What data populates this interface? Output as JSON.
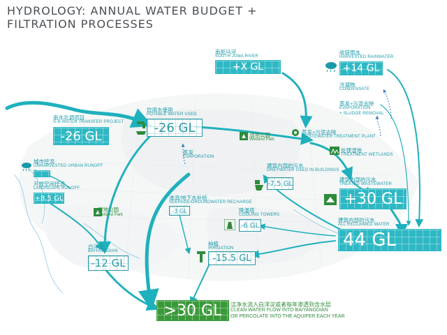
{
  "title_line1": "HYDROLOGY: ANNUAL WATER BUDGET +",
  "title_line2": "FILTRATION PROCESSES",
  "south_juma": {
    "cn": "南拒马河",
    "en": "SOUTH JUMA RIVER",
    "value": "+X GL"
  },
  "rainwater": {
    "cn": "收获雨水",
    "en": "HARVESTED RAINWATER",
    "value": "+14 GL"
  },
  "condensate": {
    "cn": "冷凝物",
    "en": "CONDENSATE"
  },
  "evap_sludge": {
    "cn": "蒸发+污泥去除",
    "en1": "EVAPORATION",
    "en2": "+ SLUDGE REMOVAL"
  },
  "transfer": {
    "cn": "南水北调项目",
    "en": "S-N WATER TRANSFER PROJECT",
    "value": "-26 GL"
  },
  "potable": {
    "cn": "饮用水使用",
    "en": "POTABLE WATER USED",
    "value": "-26 GL"
  },
  "wetland_park_1": {
    "cn": "湿地公园",
    "en": "Wetland Park"
  },
  "wastewater_plant": {
    "cn": "蒸发+污泥去除",
    "en": "WASTEWATER TREATMENT PLANT"
  },
  "treatment_wetlands": {
    "cn": "处理湿地",
    "en": "TREATMENT WETLANDS"
  },
  "evaporation": {
    "cn": "蒸发",
    "en": "EVAPORATION"
  },
  "urban_runoff": {
    "cn": "城市径流",
    "en": "UNHARVESTED URBAN RUNOFF"
  },
  "landscape_runoff": {
    "cn": "开放空间径流",
    "en": "LANDSCAPE RUNOFF",
    "value": "+8.5 GL"
  },
  "greywater": {
    "cn": "建筑内部的污水",
    "en": "GREYWATER USED IN BUILDINGS",
    "value": "-7.5 GL"
  },
  "treated_wastewater": {
    "cn": "建筑内部的污水",
    "en": "TREATED WASTEWATER",
    "value": "+30 GL"
  },
  "wetland_park_2": {
    "cn": "湿地公园",
    "en": "Wetland Park"
  },
  "seepage": {
    "cn": "渗流/地下水补给",
    "en": "SEEPAGE/GROUNDWATER RECHARGE",
    "value": "-3 GL"
  },
  "cooling": {
    "cn": "降温塔",
    "en": "COOLING TOWERS",
    "value": "-6 GL"
  },
  "reclaimed": {
    "cn": "建筑内部的污水",
    "en": "ALL RECLAIMED WATER",
    "value": "44 GL"
  },
  "irrigation": {
    "cn": "种植",
    "en": "IRRIGATION",
    "value": "-15.5 GL"
  },
  "baiyangdian": {
    "cn": "白洋淀",
    "en": "BAIYANGDIAN",
    "value": "-12 GL"
  },
  "clean_flow": {
    "value": ">30 GL",
    "cn": "洁净水流入白洋淀或者每年渗透到含水层",
    "en1": "CLEAN WATER FLOW INTO BAIYANGDIAN",
    "en2": "OR PERCOLATE INTO THE AQUIFER EACH YEAR"
  },
  "colors": {
    "teal": "#2eb8c4",
    "teal_dark": "#1a9aa8",
    "green": "#3a9a3a"
  }
}
